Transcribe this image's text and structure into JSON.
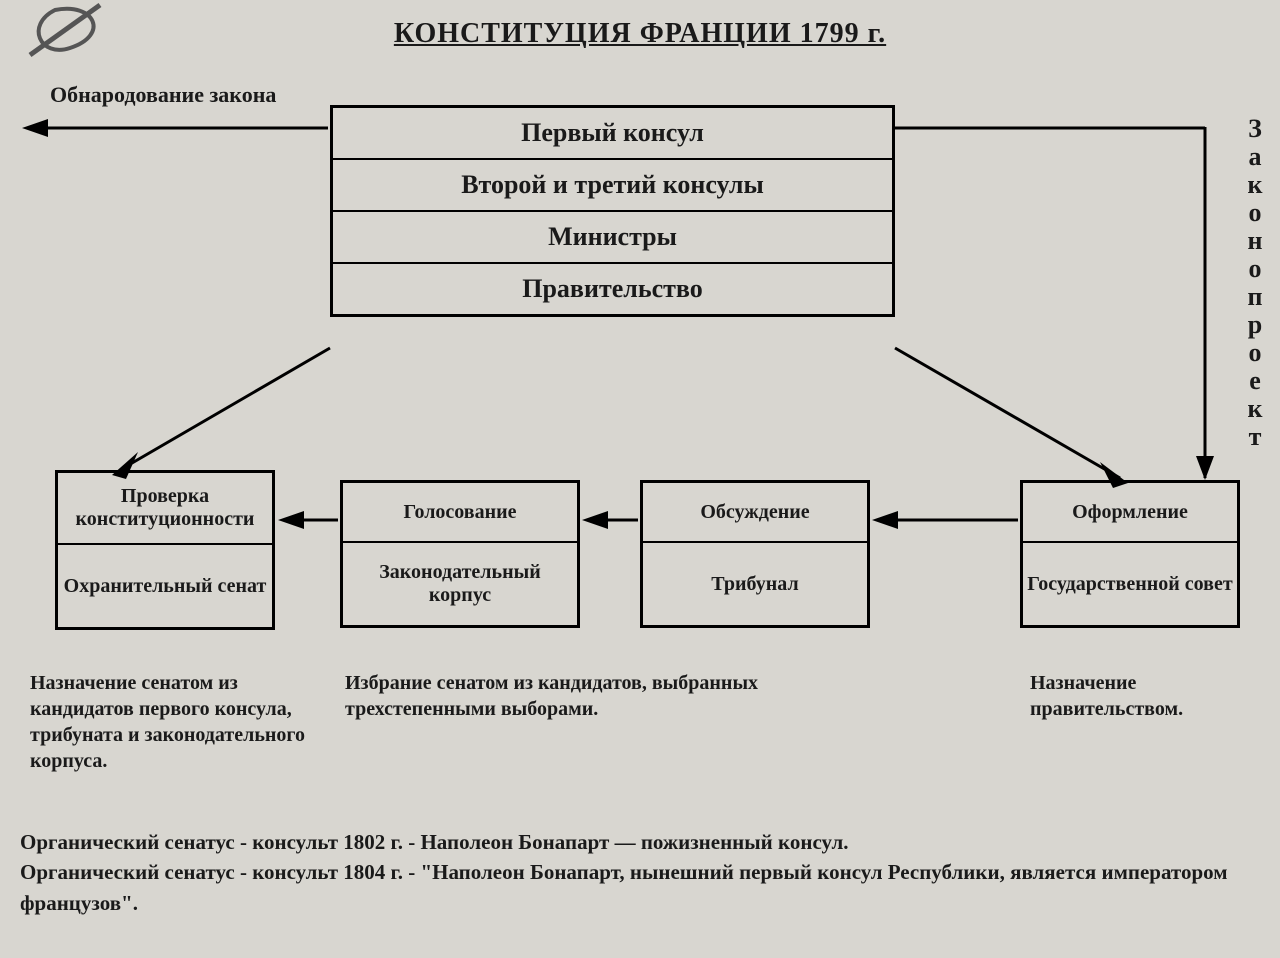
{
  "title": "КОНСТИТУЦИЯ ФРАНЦИИ 1799 г.",
  "publication_label": "Обнародование закона",
  "vertical_label": "Законопроект",
  "executive": {
    "first_consul": "Первый консул",
    "other_consuls": "Второй и третий консулы",
    "ministers": "Министры",
    "government": "Правительство"
  },
  "bodies": {
    "senate": {
      "top": "Проверка конституционности",
      "bottom": "Охранительный сенат"
    },
    "corps": {
      "top": "Голосование",
      "bottom": "Законодательный корпус"
    },
    "tribunal": {
      "top": "Обсуждение",
      "bottom": "Трибунал"
    },
    "council": {
      "top": "Оформление",
      "bottom": "Государственной совет"
    }
  },
  "captions": {
    "c1": "Назначение сенатом из кандидатов первого консула, трибуната и законодательного корпуса.",
    "c2": "Избрание сенатом из кандидатов, выбранных трехстепенными выборами.",
    "c3": "Назначение правительством."
  },
  "footer_lines": [
    "Органический сенатус - консульт 1802 г. - Наполеон Бонапарт — пожизненный консул.",
    "Органический сенатус - консульт 1804 г. - \"Наполеон Бонапарт, нынешний первый консул Республики, является императором французов\"."
  ],
  "style": {
    "background_color": "#d8d6d0",
    "line_color": "#000000",
    "text_color": "#1a1a1a",
    "border_width": 3,
    "font_family": "Times New Roman",
    "title_fontsize": 28,
    "box_fontsize": 20
  },
  "diagram_type": "flowchart"
}
